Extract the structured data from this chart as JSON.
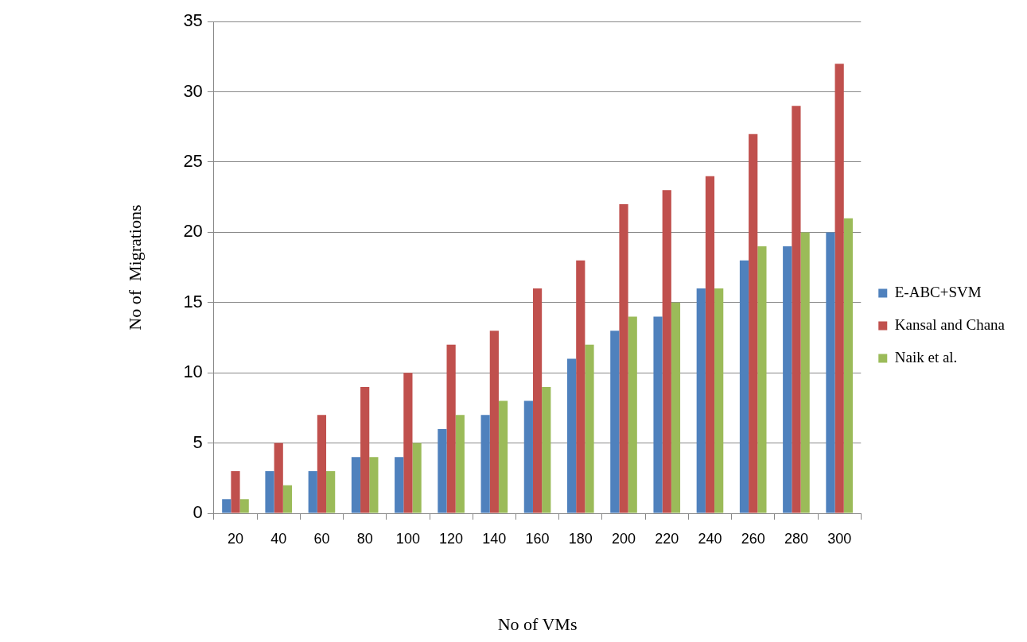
{
  "chart_data": {
    "type": "bar",
    "xlabel": "No of VMs",
    "ylabel": "No of  Migrations",
    "categories": [
      "20",
      "40",
      "60",
      "80",
      "100",
      "120",
      "140",
      "160",
      "180",
      "200",
      "220",
      "240",
      "260",
      "280",
      "300"
    ],
    "series": [
      {
        "name": "E-ABC+SVM",
        "color": "#4f81bd",
        "values": [
          1,
          3,
          3,
          4,
          4,
          6,
          7,
          8,
          11,
          13,
          14,
          16,
          18,
          19,
          20
        ]
      },
      {
        "name": "Kansal and Chana",
        "color": "#c0504d",
        "values": [
          3,
          5,
          7,
          9,
          10,
          12,
          13,
          16,
          18,
          22,
          23,
          24,
          27,
          29,
          32
        ]
      },
      {
        "name": "Naik et al.",
        "color": "#9bbb59",
        "values": [
          1,
          2,
          3,
          4,
          5,
          7,
          8,
          9,
          12,
          14,
          15,
          16,
          19,
          20,
          21
        ]
      }
    ],
    "ylim": [
      0,
      35
    ],
    "yticks": [
      0,
      5,
      10,
      15,
      20,
      25,
      30,
      35
    ],
    "grid": "y",
    "legend": "right"
  }
}
